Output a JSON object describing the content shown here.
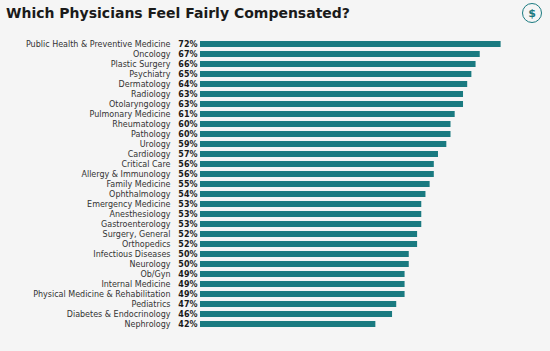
{
  "chart_data": {
    "type": "bar",
    "orientation": "horizontal",
    "title": "Which Physicians Feel Fairly Compensated?",
    "categories": [
      "Public Health & Preventive Medicine",
      "Oncology",
      "Plastic Surgery",
      "Psychiatry",
      "Dermatology",
      "Radiology",
      "Otolaryngology",
      "Pulmonary Medicine",
      "Rheumatology",
      "Pathology",
      "Urology",
      "Cardiology",
      "Critical Care",
      "Allergy & Immunology",
      "Family Medicine",
      "Ophthalmology",
      "Emergency Medicine",
      "Anesthesiology",
      "Gastroenterology",
      "Surgery, General",
      "Orthopedics",
      "Infectious Diseases",
      "Neurology",
      "Ob/Gyn",
      "Internal Medicine",
      "Physical Medicine & Rehabilitation",
      "Pediatrics",
      "Diabetes & Endocrinology",
      "Nephrology"
    ],
    "values": [
      72,
      67,
      66,
      65,
      64,
      63,
      63,
      61,
      60,
      60,
      59,
      57,
      56,
      56,
      55,
      54,
      53,
      53,
      53,
      52,
      52,
      50,
      50,
      49,
      49,
      49,
      47,
      46,
      42
    ],
    "value_labels": [
      "72%",
      "67%",
      "66%",
      "65%",
      "64%",
      "63%",
      "63%",
      "61%",
      "60%",
      "60%",
      "59%",
      "57%",
      "56%",
      "56%",
      "55%",
      "54%",
      "53%",
      "53%",
      "53%",
      "52%",
      "52%",
      "50%",
      "50%",
      "49%",
      "49%",
      "49%",
      "47%",
      "46%",
      "42%"
    ],
    "data_labels": true,
    "color": "#1a7a80",
    "xlim": [
      0,
      80
    ],
    "tick_labels": "y",
    "grid": false,
    "annotations": [
      "$"
    ]
  }
}
